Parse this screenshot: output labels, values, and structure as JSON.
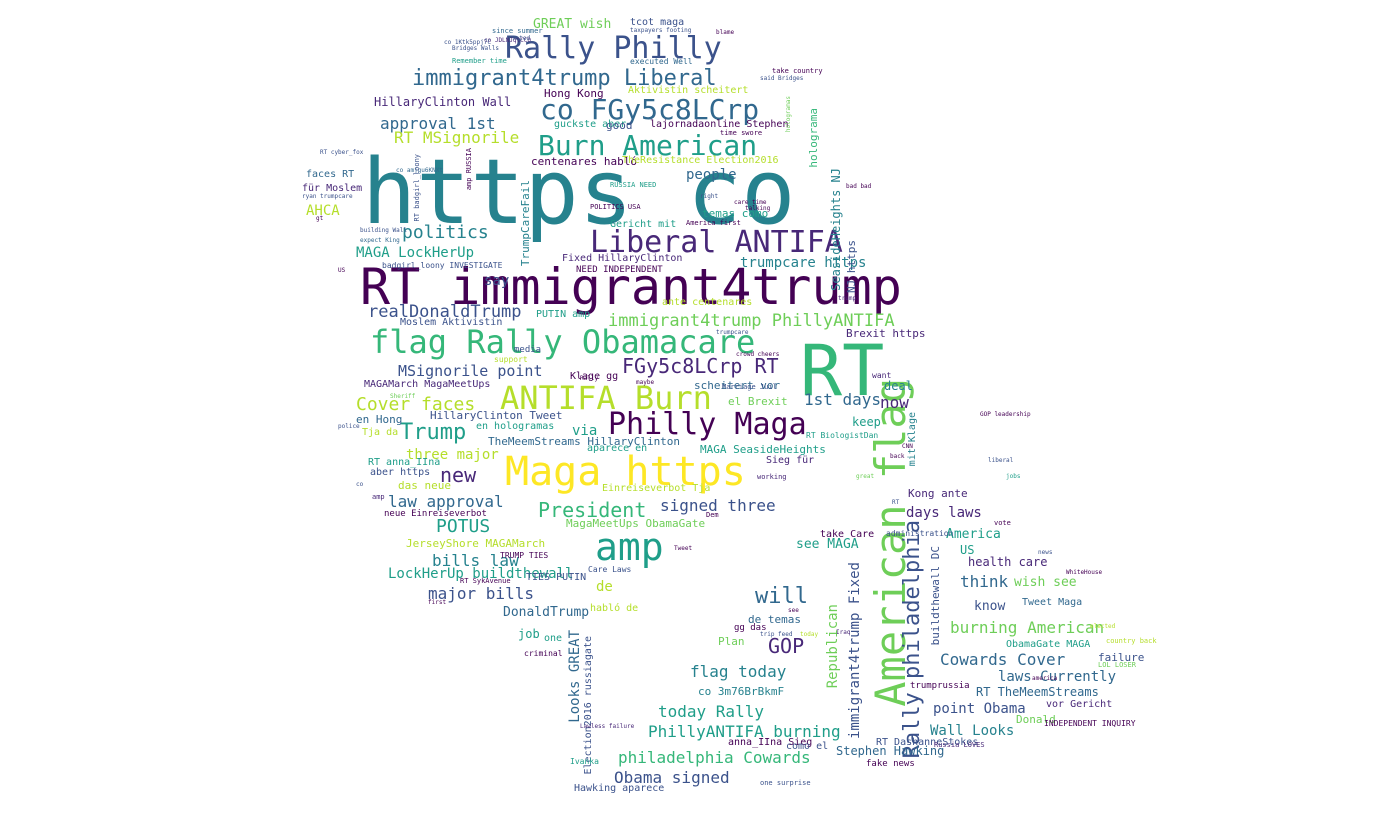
{
  "palette": {
    "dark_purple": "#440154",
    "indigo": "#3b528b",
    "blue": "#31688e",
    "teal": "#26828e",
    "green_teal": "#1f9e89",
    "green": "#35b779",
    "light_green": "#6ece58",
    "lime": "#b5de2b",
    "yellow": "#fde725",
    "navy": "#482878"
  },
  "words": [
    {
      "text": "https co"
    },
    {
      "text": "RT immigrant4trump"
    },
    {
      "text": "RT"
    },
    {
      "text": "American flag"
    },
    {
      "text": "Maga https"
    },
    {
      "text": "amp"
    },
    {
      "text": "flag Rally Obamacare"
    },
    {
      "text": "Liberal ANTIFA"
    },
    {
      "text": "Burn American"
    },
    {
      "text": "co FGy5c8LCrp"
    },
    {
      "text": "Rally Philly"
    },
    {
      "text": "ANTIFA Burn"
    },
    {
      "text": "Philly Maga"
    },
    {
      "text": "immigrant4trump Liberal"
    },
    {
      "text": "Rally philadelphia"
    },
    {
      "text": "FGy5c8LCrp RT"
    },
    {
      "text": "immigrant4trump PhillyANTIFA"
    },
    {
      "text": "realDonaldTrump"
    },
    {
      "text": "Trump"
    },
    {
      "text": "Cover faces"
    },
    {
      "text": "politics"
    },
    {
      "text": "MSignorile point"
    },
    {
      "text": "new"
    },
    {
      "text": "President"
    },
    {
      "text": "POTUS"
    },
    {
      "text": "GOP"
    },
    {
      "text": "will"
    },
    {
      "text": "approval 1st"
    },
    {
      "text": "RT MSignorile"
    },
    {
      "text": "MAGA LockHerUp"
    },
    {
      "text": "trumpcare https"
    },
    {
      "text": "1st days"
    },
    {
      "text": "now"
    },
    {
      "text": "signed three"
    },
    {
      "text": "law approval"
    },
    {
      "text": "bills law"
    },
    {
      "text": "LockHerUp buildthewall"
    },
    {
      "text": "major bills"
    },
    {
      "text": "flag today"
    },
    {
      "text": "today Rally"
    },
    {
      "text": "PhillyANTIFA burning"
    },
    {
      "text": "philadelphia Cowards"
    },
    {
      "text": "Obama signed"
    },
    {
      "text": "burning American"
    },
    {
      "text": "Cowards Cover"
    },
    {
      "text": "laws Currently"
    },
    {
      "text": "Wall Looks"
    },
    {
      "text": "point Obama"
    },
    {
      "text": "think"
    },
    {
      "text": "days laws"
    },
    {
      "text": "America"
    },
    {
      "text": "Republican"
    },
    {
      "text": "immigrant4trump Fixed"
    },
    {
      "text": "see MAGA"
    },
    {
      "text": "people"
    },
    {
      "text": "HillaryClinton Wall"
    },
    {
      "text": "Hong Kong"
    },
    {
      "text": "AHCA"
    },
    {
      "text": "GREAT wish"
    },
    {
      "text": "say"
    },
    {
      "text": "via"
    },
    {
      "text": "three major"
    },
    {
      "text": "job"
    },
    {
      "text": "DonaldTrump"
    },
    {
      "text": "de"
    },
    {
      "text": "keep"
    },
    {
      "text": "deal"
    },
    {
      "text": "US"
    },
    {
      "text": "health care"
    },
    {
      "text": "wish see"
    },
    {
      "text": "know"
    },
    {
      "text": "Tweet Maga"
    },
    {
      "text": "co 3m76BrBkmF"
    },
    {
      "text": "Looks GREAT"
    },
    {
      "text": "Stephen Hawking"
    },
    {
      "text": "Hawking aparece"
    },
    {
      "text": "RT TheMeemStreams"
    },
    {
      "text": "ObamaGate MAGA"
    },
    {
      "text": "Kong ante"
    },
    {
      "text": "Donald"
    },
    {
      "text": "failure"
    },
    {
      "text": "MAGAMarch MagaMeetUps"
    },
    {
      "text": "HillaryClinton Tweet"
    },
    {
      "text": "TheMeemStreams HillaryClinton"
    },
    {
      "text": "MAGA SeasideHeights"
    },
    {
      "text": "JerseyShore MAGAMarch"
    },
    {
      "text": "MagaMeetUps ObamaGate"
    },
    {
      "text": "Fixed HillaryClinton"
    },
    {
      "text": "NEED INDEPENDENT"
    },
    {
      "text": "centenares habló"
    },
    {
      "text": "ante centenares"
    },
    {
      "text": "en hologramas"
    },
    {
      "text": "TrumpCareFail"
    },
    {
      "text": "SeasideHeights NJ"
    },
    {
      "text": "NJ https"
    },
    {
      "text": "holograma"
    },
    {
      "text": "temas como"
    },
    {
      "text": "Brexit https"
    },
    {
      "text": "Moslem Aktivistin"
    },
    {
      "text": "PUTIN amp"
    },
    {
      "text": "scheitert vor"
    },
    {
      "text": "el Brexit"
    },
    {
      "text": "Sieg für"
    },
    {
      "text": "mit Klage"
    },
    {
      "text": "buildthewall DC"
    },
    {
      "text": "Einreiseverbot Tja"
    },
    {
      "text": "de temas"
    },
    {
      "text": "TIES PUTIN"
    },
    {
      "text": "Plan"
    },
    {
      "text": "one"
    },
    {
      "text": "habló de"
    },
    {
      "text": "das neue"
    },
    {
      "text": "en Hong"
    },
    {
      "text": "Tja da"
    },
    {
      "text": "aber https"
    },
    {
      "text": "RT anna_IIna"
    },
    {
      "text": "neue Einreiseverbot"
    },
    {
      "text": "Aktivistin scheitert"
    },
    {
      "text": "guckste aber"
    },
    {
      "text": "lajornadaonline Stephen"
    },
    {
      "text": "good"
    },
    {
      "text": "TheResistance Election2016"
    },
    {
      "text": "für Moslem"
    },
    {
      "text": "faces RT"
    },
    {
      "text": "tcot maga"
    },
    {
      "text": "co JDLNJqtCC0"
    },
    {
      "text": "Klage gg"
    },
    {
      "text": "Election2016 russiagate"
    },
    {
      "text": "anna_IIna Sieg"
    },
    {
      "text": "vor Gericht"
    },
    {
      "text": "como el"
    },
    {
      "text": "trumprussia"
    },
    {
      "text": "RT DashanneStokes"
    },
    {
      "text": "Gericht mit"
    },
    {
      "text": "gg das"
    },
    {
      "text": "take Care"
    },
    {
      "text": "administration"
    },
    {
      "text": "take country"
    },
    {
      "text": "Remember time"
    },
    {
      "text": "INDEPENDENT INQUIRY"
    },
    {
      "text": "Care Laws"
    },
    {
      "text": "TRUMP TIES"
    },
    {
      "text": "badgirl_loony INVESTIGATE"
    },
    {
      "text": "aparece en"
    },
    {
      "text": "executed Well"
    },
    {
      "text": "time swore"
    },
    {
      "text": "America first"
    },
    {
      "text": "Marriage Juil"
    },
    {
      "text": "Russia LOVES"
    },
    {
      "text": "blame"
    },
    {
      "text": "since summer"
    },
    {
      "text": "voted"
    },
    {
      "text": "taxpayers footing"
    },
    {
      "text": "co 1Ktk5ppj7C"
    },
    {
      "text": "one surprise"
    },
    {
      "text": "RT BiologistDan"
    },
    {
      "text": "fake news"
    },
    {
      "text": "LOL LOSER"
    },
    {
      "text": "country back"
    },
    {
      "text": "RT SykAvenue"
    },
    {
      "text": "Ivanka"
    },
    {
      "text": "criminal"
    },
    {
      "text": "GOP leadership"
    },
    {
      "text": "vote"
    },
    {
      "text": "Dem"
    },
    {
      "text": "working"
    },
    {
      "text": "media"
    },
    {
      "text": "support"
    },
    {
      "text": "want"
    },
    {
      "text": "bad bad"
    },
    {
      "text": "POLITICS USA"
    },
    {
      "text": "co amjgu6KNXt"
    },
    {
      "text": "Lawless failure"
    },
    {
      "text": "RUSSIA NEED"
    },
    {
      "text": "care time"
    },
    {
      "text": "said Bridges"
    },
    {
      "text": "Bridges Walls"
    },
    {
      "text": "RT cyber_fox"
    },
    {
      "text": "hologramas"
    },
    {
      "text": "amp RUSSIA"
    },
    {
      "text": "RT badgirl_loony"
    },
    {
      "text": "ryan trumpcare"
    },
    {
      "text": "expect King"
    },
    {
      "text": "building Wall"
    },
    {
      "text": "crowd cheers"
    },
    {
      "text": "trumpcare"
    },
    {
      "text": "right"
    },
    {
      "text": "talking"
    },
    {
      "text": "Rally"
    },
    {
      "text": "trip feed"
    },
    {
      "text": "Tweet"
    },
    {
      "text": "maybe"
    },
    {
      "text": "today"
    },
    {
      "text": "see"
    },
    {
      "text": "Iraq"
    },
    {
      "text": "CNN"
    },
    {
      "text": "liberal"
    },
    {
      "text": "police"
    },
    {
      "text": "great"
    },
    {
      "text": "back"
    },
    {
      "text": "news"
    },
    {
      "text": "WhiteHouse"
    },
    {
      "text": "Sheriff"
    },
    {
      "text": "first"
    },
    {
      "text": "jobs"
    },
    {
      "text": "elected"
    },
    {
      "text": "america"
    },
    {
      "text": "RT"
    },
    {
      "text": "co"
    },
    {
      "text": "amp"
    },
    {
      "text": "gt"
    },
    {
      "text": "US"
    },
    {
      "text": "trump"
    }
  ]
}
